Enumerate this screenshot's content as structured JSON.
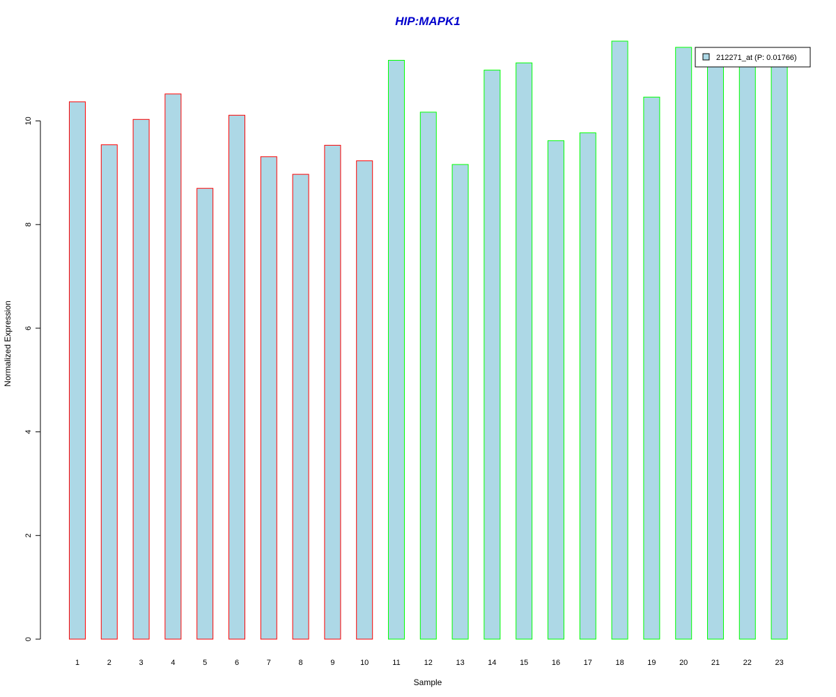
{
  "colors": {
    "title": "#0000CC",
    "bar_fill": "#ADD8E6",
    "group1_border": "#FF0000",
    "group2_border": "#00FF00",
    "axis": "#000000"
  },
  "chart_data": {
    "type": "bar",
    "title": "HIP:MAPK1",
    "xlabel": "Sample",
    "ylabel": "Normalized Expression",
    "ylim": [
      0,
      11.6
    ],
    "yticks": [
      0,
      2,
      4,
      6,
      8,
      10
    ],
    "grid": false,
    "legend_position": "top-right",
    "categories": [
      "1",
      "2",
      "3",
      "4",
      "5",
      "6",
      "7",
      "8",
      "9",
      "10",
      "11",
      "12",
      "13",
      "14",
      "15",
      "16",
      "17",
      "18",
      "19",
      "20",
      "21",
      "22",
      "23"
    ],
    "series": [
      {
        "name": "212271_at (P: 0.01766)",
        "values": [
          10.37,
          9.54,
          10.03,
          10.52,
          8.7,
          10.11,
          9.31,
          8.97,
          9.53,
          9.23,
          11.17,
          10.17,
          9.16,
          10.98,
          11.12,
          9.62,
          9.77,
          11.54,
          10.46,
          11.42,
          11.3,
          11.1,
          11.15
        ]
      }
    ],
    "border_groups": [
      1,
      1,
      1,
      1,
      1,
      1,
      1,
      1,
      1,
      1,
      2,
      2,
      2,
      2,
      2,
      2,
      2,
      2,
      2,
      2,
      2,
      2,
      2
    ]
  }
}
